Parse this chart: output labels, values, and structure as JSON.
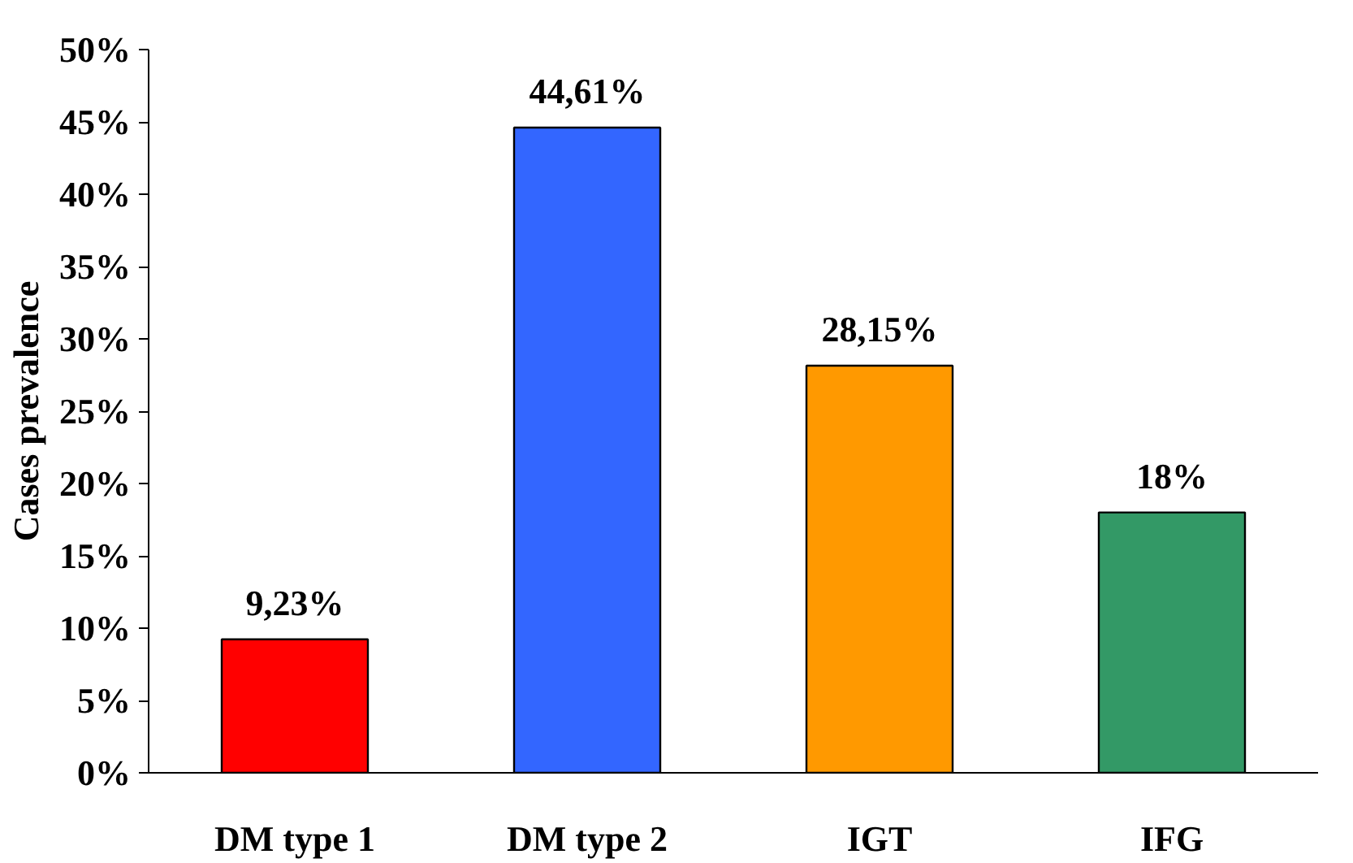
{
  "chart_data": {
    "type": "bar",
    "ylabel": "Cases prevalence",
    "categories": [
      "DM type 1",
      "DM type 2",
      "IGT",
      "IFG"
    ],
    "values": [
      9.23,
      44.61,
      28.15,
      18
    ],
    "colors": [
      "#ff0000",
      "#3366ff",
      "#ff9900",
      "#339966"
    ],
    "value_labels": [
      "9,23%",
      "44,61%",
      "28,15%",
      "18%"
    ],
    "ylim": [
      0,
      50
    ],
    "yticks": [
      {
        "value": 0,
        "label": "0%"
      },
      {
        "value": 5,
        "label": "5%"
      },
      {
        "value": 10,
        "label": "10%"
      },
      {
        "value": 15,
        "label": "15%"
      },
      {
        "value": 20,
        "label": "20%"
      },
      {
        "value": 25,
        "label": "25%"
      },
      {
        "value": 30,
        "label": "30%"
      },
      {
        "value": 35,
        "label": "35%"
      },
      {
        "value": 40,
        "label": "40%"
      },
      {
        "value": 45,
        "label": "45%"
      },
      {
        "value": 50,
        "label": "50%"
      }
    ],
    "grid": false
  }
}
